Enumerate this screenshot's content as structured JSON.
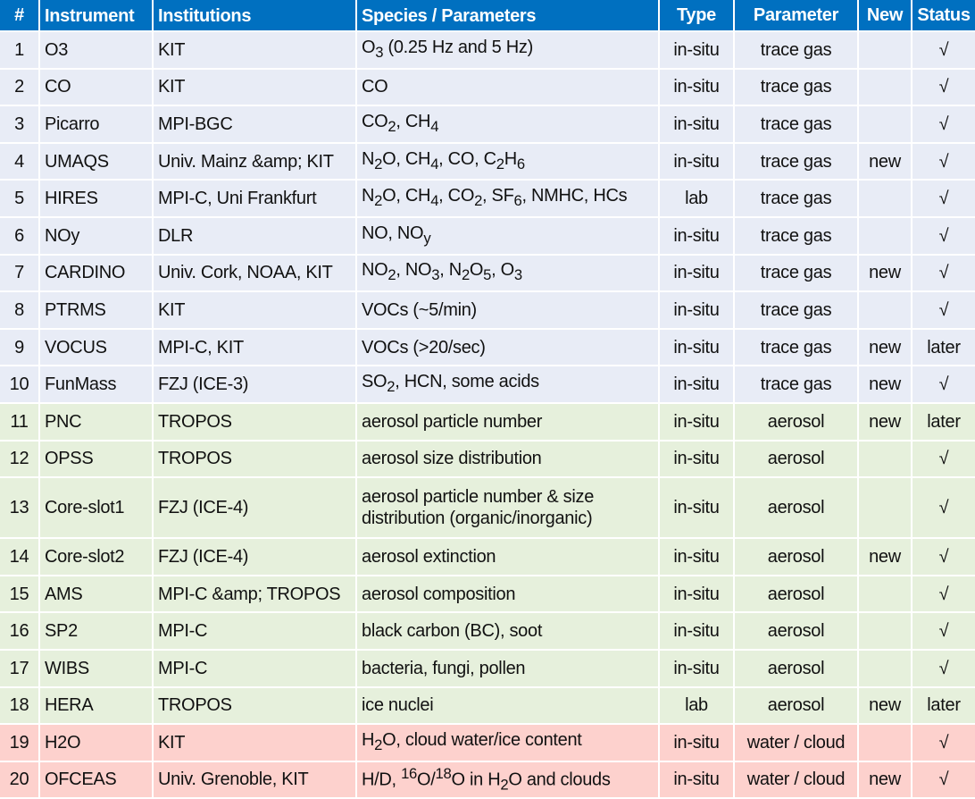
{
  "headers": {
    "num": "#",
    "instrument": "Instrument",
    "institutions": "Institutions",
    "species": "Species / Parameters",
    "type": "Type",
    "parameter": "Parameter",
    "new": "New",
    "status": "Status"
  },
  "rows": [
    {
      "num": "1",
      "instrument": "O3",
      "institutions": "KIT",
      "species": "O<sub>3</sub> (0.25 Hz and 5 Hz)",
      "type": "in-situ",
      "parameter": "trace gas",
      "new": "",
      "status": "√",
      "group": "trace"
    },
    {
      "num": "2",
      "instrument": "CO",
      "institutions": "KIT",
      "species": "CO",
      "type": "in-situ",
      "parameter": "trace gas",
      "new": "",
      "status": "√",
      "group": "trace"
    },
    {
      "num": "3",
      "instrument": "Picarro",
      "institutions": "MPI-BGC",
      "species": "CO<sub>2</sub>, CH<sub>4</sub>",
      "type": "in-situ",
      "parameter": "trace gas",
      "new": "",
      "status": "√",
      "group": "trace"
    },
    {
      "num": "4",
      "instrument": "UMAQS",
      "institutions": "Univ. Mainz &amp; KIT",
      "species": "N<sub>2</sub>O, CH<sub>4</sub>, CO, C<sub>2</sub>H<sub>6</sub>",
      "type": "in-situ",
      "parameter": "trace gas",
      "new": "new",
      "status": "√",
      "group": "trace"
    },
    {
      "num": "5",
      "instrument": "HIRES",
      "institutions": "MPI-C, Uni Frankfurt",
      "species": "N<sub>2</sub>O, CH<sub>4</sub>, CO<sub>2</sub>, SF<sub>6</sub>, NMHC, HCs",
      "type": "lab",
      "parameter": "trace gas",
      "new": "",
      "status": "√",
      "group": "trace"
    },
    {
      "num": "6",
      "instrument": "NOy",
      "institutions": "DLR",
      "species": "NO, NO<sub>y</sub>",
      "type": "in-situ",
      "parameter": "trace gas",
      "new": "",
      "status": "√",
      "group": "trace"
    },
    {
      "num": "7",
      "instrument": "CARDINO",
      "institutions": "Univ. Cork, NOAA, KIT",
      "species": "NO<sub>2</sub>, NO<sub>3</sub>, N<sub>2</sub>O<sub>5</sub>, O<sub>3</sub>",
      "type": "in-situ",
      "parameter": "trace gas",
      "new": "new",
      "status": "√",
      "group": "trace"
    },
    {
      "num": "8",
      "instrument": "PTRMS",
      "institutions": "KIT",
      "species": "VOCs (~5/min)",
      "type": "in-situ",
      "parameter": "trace gas",
      "new": "",
      "status": "√",
      "group": "trace"
    },
    {
      "num": "9",
      "instrument": "VOCUS",
      "institutions": "MPI-C, KIT",
      "species": "VOCs (&gt;20/sec)",
      "type": "in-situ",
      "parameter": "trace gas",
      "new": "new",
      "status": "later",
      "group": "trace"
    },
    {
      "num": "10",
      "instrument": "FunMass",
      "institutions": "FZJ (ICE-3)",
      "species": "SO<sub>2</sub>, HCN, some acids",
      "type": "in-situ",
      "parameter": "trace gas",
      "new": "new",
      "status": "√",
      "group": "trace"
    },
    {
      "num": "11",
      "instrument": "PNC",
      "institutions": "TROPOS",
      "species": "aerosol particle number",
      "type": "in-situ",
      "parameter": "aerosol",
      "new": "new",
      "status": "later",
      "group": "aerosol"
    },
    {
      "num": "12",
      "instrument": "OPSS",
      "institutions": "TROPOS",
      "species": "aerosol size distribution",
      "type": "in-situ",
      "parameter": "aerosol",
      "new": "",
      "status": "√",
      "group": "aerosol"
    },
    {
      "num": "13",
      "instrument": "Core-slot1",
      "institutions": "FZJ (ICE-4)",
      "species": "aerosol particle number &amp; size distribution (organic/inorganic)",
      "type": "in-situ",
      "parameter": "aerosol",
      "new": "",
      "status": "√",
      "group": "aerosol",
      "tall": true
    },
    {
      "num": "14",
      "instrument": "Core-slot2",
      "institutions": "FZJ (ICE-4)",
      "species": "aerosol extinction",
      "type": "in-situ",
      "parameter": "aerosol",
      "new": "new",
      "status": "√",
      "group": "aerosol"
    },
    {
      "num": "15",
      "instrument": "AMS",
      "institutions": "MPI-C &amp; TROPOS",
      "species": "aerosol composition",
      "type": "in-situ",
      "parameter": "aerosol",
      "new": "",
      "status": "√",
      "group": "aerosol"
    },
    {
      "num": "16",
      "instrument": "SP2",
      "institutions": "MPI-C",
      "species": "black carbon (BC), soot",
      "type": "in-situ",
      "parameter": "aerosol",
      "new": "",
      "status": "√",
      "group": "aerosol"
    },
    {
      "num": "17",
      "instrument": "WIBS",
      "institutions": "MPI-C",
      "species": "bacteria, fungi, pollen",
      "type": "in-situ",
      "parameter": "aerosol",
      "new": "",
      "status": "√",
      "group": "aerosol"
    },
    {
      "num": "18",
      "instrument": "HERA",
      "institutions": "TROPOS",
      "species": "ice nuclei",
      "type": "lab",
      "parameter": "aerosol",
      "new": "new",
      "status": "later",
      "group": "aerosol"
    },
    {
      "num": "19",
      "instrument": "H2O",
      "institutions": "KIT",
      "species": "H<sub>2</sub>O, cloud water/ice content",
      "type": "in-situ",
      "parameter": "water / cloud",
      "new": "",
      "status": "√",
      "group": "water"
    },
    {
      "num": "20",
      "instrument": "OFCEAS",
      "institutions": "Univ. Grenoble, KIT",
      "species": "H/D, <sup>16</sup>O/<sup>18</sup>O in H<sub>2</sub>O and clouds",
      "type": "in-situ",
      "parameter": "water / cloud",
      "new": "new",
      "status": "√",
      "group": "water"
    }
  ]
}
